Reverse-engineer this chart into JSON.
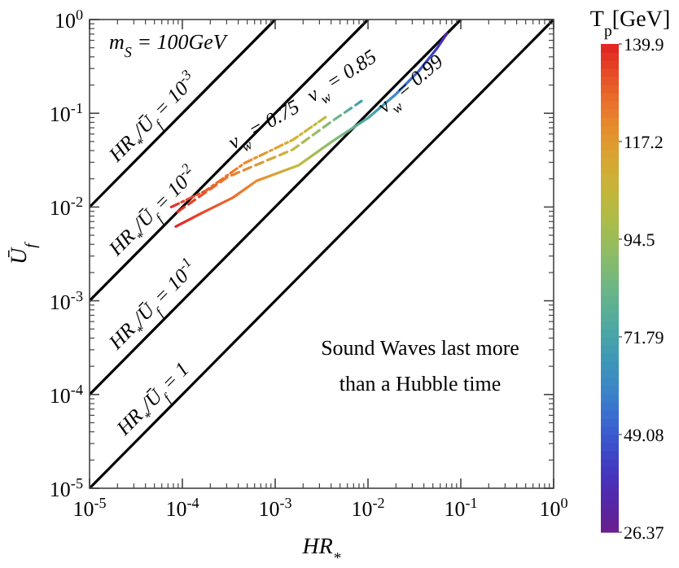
{
  "chart_data": {
    "type": "line",
    "log": "xy",
    "xlabel": "HR$_{*}$",
    "ylabel": "Ū$_{f}$",
    "clabel": "T$_{p}$[GeV]",
    "xlim": [
      1e-05,
      1
    ],
    "ylim": [
      1e-05,
      1
    ],
    "xticks": [
      {
        "value": 1e-05,
        "label": "10$^{-5}$"
      },
      {
        "value": 0.0001,
        "label": "10$^{-4}$"
      },
      {
        "value": 0.001,
        "label": "10$^{-3}$"
      },
      {
        "value": 0.01,
        "label": "10$^{-2}$"
      },
      {
        "value": 0.1,
        "label": "10$^{-1}$"
      },
      {
        "value": 1,
        "label": "10$^{0}$"
      }
    ],
    "yticks": [
      {
        "value": 1e-05,
        "label": "10$^{-5}$"
      },
      {
        "value": 0.0001,
        "label": "10$^{-4}$"
      },
      {
        "value": 0.001,
        "label": "10$^{-3}$"
      },
      {
        "value": 0.01,
        "label": "10$^{-2}$"
      },
      {
        "value": 0.1,
        "label": "10$^{-1}$"
      },
      {
        "value": 1,
        "label": "10$^{0}$"
      }
    ],
    "clim": [
      26.37,
      139.9
    ],
    "cticks": [
      26.37,
      49.08,
      71.79,
      94.5,
      117.2,
      139.9
    ],
    "grid": false,
    "annotations": [
      "m$_{S}$ = 100GeV",
      "Sound Waves last more than a Hubble time"
    ],
    "series": [
      {
        "name": "HR$_{*}$/Ū$_{f}$ = 10$^{-3}$",
        "color": "#000000",
        "line_style": "solid",
        "x": [
          1e-05,
          0.001
        ],
        "values": [
          0.01,
          1
        ]
      },
      {
        "name": "HR$_{*}$/Ū$_{f}$ = 10$^{-2}$",
        "color": "#000000",
        "line_style": "solid",
        "x": [
          1e-05,
          0.01
        ],
        "values": [
          0.001,
          1
        ]
      },
      {
        "name": "HR$_{*}$/Ū$_{f}$ = 10$^{-1}$",
        "color": "#000000",
        "line_style": "solid",
        "x": [
          1e-05,
          0.1
        ],
        "values": [
          0.0001,
          1
        ]
      },
      {
        "name": "HR$_{*}$/Ū$_{f}$ = 1",
        "color": "#000000",
        "line_style": "solid",
        "x": [
          1e-05,
          1
        ],
        "values": [
          1e-05,
          1
        ]
      },
      {
        "name": "v$_{w}$ = 0.75",
        "line_style": "dotted",
        "x": [
          7.6e-05,
          0.00018,
          0.00047,
          0.00155,
          0.0035
        ],
        "values": [
          0.01,
          0.015,
          0.0295,
          0.052,
          0.091
        ],
        "colors": [
          "#e32a24",
          "#ea5a28",
          "#ee8a2c",
          "#d8b030",
          "#b8bc40"
        ]
      },
      {
        "name": "v$_{w}$ = 0.85",
        "line_style": "dashed",
        "x": [
          8.9e-05,
          0.00031,
          0.00155,
          0.004,
          0.0085
        ],
        "values": [
          0.0089,
          0.021,
          0.041,
          0.081,
          0.135
        ],
        "colors": [
          "#e32a24",
          "#ee7a2c",
          "#c4bb40",
          "#7cbb7c",
          "#3aa0b0"
        ]
      },
      {
        "name": "v$_{w}$ = 0.99",
        "line_style": "solid",
        "x": [
          8.5e-05,
          0.00015,
          0.00035,
          0.00063,
          0.0018,
          0.0041,
          0.01,
          0.02,
          0.035,
          0.056,
          0.071
        ],
        "values": [
          0.0062,
          0.0083,
          0.0126,
          0.019,
          0.028,
          0.05,
          0.089,
          0.16,
          0.28,
          0.5,
          0.71
        ],
        "colors": [
          "#e12424",
          "#e6442a",
          "#ec6a2c",
          "#eb8c2e",
          "#c4bb40",
          "#8cbc70",
          "#4aa8a8",
          "#3a88d0",
          "#3a5ad0",
          "#3b38c8",
          "#5a24a8"
        ]
      }
    ]
  }
}
